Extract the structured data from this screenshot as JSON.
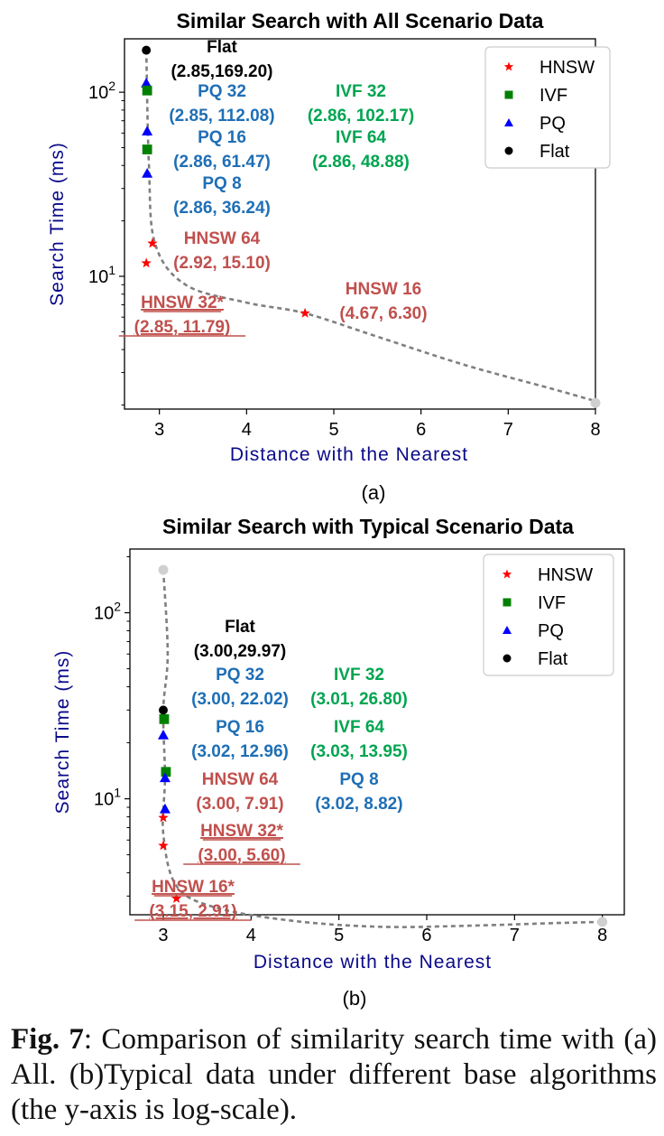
{
  "legend": [
    {
      "label": "HNSW",
      "marker": "star",
      "color": "#ff0000"
    },
    {
      "label": "IVF",
      "marker": "square",
      "color": "#008000"
    },
    {
      "label": "PQ",
      "marker": "triangle",
      "color": "#0000ff"
    },
    {
      "label": "Flat",
      "marker": "circle",
      "color": "#000000"
    }
  ],
  "chart_data": [
    {
      "type": "scatter",
      "panel_label": "(a)",
      "title": "Similar Search with All Scenario Data",
      "xlabel": "Distance with the Nearest",
      "ylabel": "Search Time (ms)",
      "y_scale": "log",
      "xlim": [
        2.6,
        8.0
      ],
      "ylim": [
        1.9,
        195
      ],
      "x_ticks": [
        "3",
        "4",
        "5",
        "6",
        "7",
        "8"
      ],
      "y_ticks": [
        "10^1",
        "10^2"
      ],
      "points": [
        {
          "series": "Flat",
          "x": 2.85,
          "y": 169.2,
          "name": "Flat",
          "coords": "(2.85,169.20)",
          "underline": false
        },
        {
          "series": "PQ",
          "x": 2.85,
          "y": 112.08,
          "name": "PQ 32",
          "coords": "(2.85, 112.08)",
          "underline": false
        },
        {
          "series": "IVF",
          "x": 2.86,
          "y": 102.17,
          "name": "IVF 32",
          "coords": "(2.86, 102.17)",
          "underline": false
        },
        {
          "series": "PQ",
          "x": 2.86,
          "y": 61.47,
          "name": "PQ 16",
          "coords": "(2.86, 61.47)",
          "underline": false
        },
        {
          "series": "IVF",
          "x": 2.86,
          "y": 48.88,
          "name": "IVF 64",
          "coords": "(2.86, 48.88)",
          "underline": false
        },
        {
          "series": "PQ",
          "x": 2.86,
          "y": 36.24,
          "name": "PQ 8",
          "coords": "(2.86, 36.24)",
          "underline": false
        },
        {
          "series": "HNSW",
          "x": 2.92,
          "y": 15.1,
          "name": "HNSW 64",
          "coords": "(2.92, 15.10)",
          "underline": false
        },
        {
          "series": "HNSW",
          "x": 2.85,
          "y": 11.79,
          "name": "HNSW 32*",
          "coords": "(2.85, 11.79)",
          "underline": true
        },
        {
          "series": "HNSW",
          "x": 4.67,
          "y": 6.3,
          "name": "HNSW 16",
          "coords": "(4.67, 6.30)",
          "underline": false
        }
      ],
      "trend_points": [
        [
          2.85,
          169.2
        ],
        [
          2.88,
          40
        ],
        [
          2.95,
          15.1
        ],
        [
          3.3,
          9.0
        ],
        [
          4.0,
          7.2
        ],
        [
          4.67,
          6.3
        ],
        [
          5.5,
          4.7
        ],
        [
          6.5,
          3.3
        ],
        [
          7.5,
          2.45
        ],
        [
          8.0,
          2.1
        ]
      ],
      "trend_end": [
        8.0,
        2.1
      ]
    },
    {
      "type": "scatter",
      "panel_label": "(b)",
      "title": "Similar Search with Typical Scenario Data",
      "xlabel": "Distance with the Nearest",
      "ylabel": "Search Time (ms)",
      "y_scale": "log",
      "xlim": [
        2.62,
        8.25
      ],
      "ylim": [
        2.38,
        220
      ],
      "x_ticks": [
        "3",
        "4",
        "5",
        "6",
        "7",
        "8"
      ],
      "y_ticks": [
        "10^1",
        "10^2"
      ],
      "points": [
        {
          "series": "Flat",
          "x": 3.0,
          "y": 29.97,
          "name": "Flat",
          "coords": "(3.00,29.97)",
          "underline": false
        },
        {
          "series": "IVF",
          "x": 3.01,
          "y": 26.8,
          "name": "IVF 32",
          "coords": "(3.01, 26.80)",
          "underline": false
        },
        {
          "series": "PQ",
          "x": 3.0,
          "y": 22.02,
          "name": "PQ 32",
          "coords": "(3.00, 22.02)",
          "underline": false
        },
        {
          "series": "IVF",
          "x": 3.03,
          "y": 13.95,
          "name": "IVF 64",
          "coords": "(3.03, 13.95)",
          "underline": false
        },
        {
          "series": "PQ",
          "x": 3.02,
          "y": 12.96,
          "name": "PQ 16",
          "coords": "(3.02, 12.96)",
          "underline": false
        },
        {
          "series": "PQ",
          "x": 3.02,
          "y": 8.82,
          "name": "PQ 8",
          "coords": "(3.02, 8.82)",
          "underline": false
        },
        {
          "series": "HNSW",
          "x": 3.0,
          "y": 7.91,
          "name": "HNSW 64",
          "coords": "(3.00, 7.91)",
          "underline": false
        },
        {
          "series": "HNSW",
          "x": 3.0,
          "y": 5.6,
          "name": "HNSW 32*",
          "coords": "(3.00, 5.60)",
          "underline": true
        },
        {
          "series": "HNSW",
          "x": 3.15,
          "y": 2.91,
          "name": "HNSW 16*",
          "coords": "(3.15, 2.91)",
          "underline": true
        }
      ],
      "trend_points": [
        [
          3.0,
          170
        ],
        [
          3.05,
          60
        ],
        [
          3.0,
          30
        ],
        [
          3.02,
          13
        ],
        [
          3.0,
          6.5
        ],
        [
          3.15,
          3.4
        ],
        [
          3.6,
          2.6
        ],
        [
          4.5,
          2.2
        ],
        [
          5.5,
          2.05
        ],
        [
          6.5,
          2.08
        ],
        [
          7.5,
          2.15
        ],
        [
          8.0,
          2.18
        ]
      ],
      "trend_end": [
        8.0,
        2.18
      ],
      "trend_start": [
        3.0,
        170
      ]
    }
  ],
  "caption": {
    "fig_label": "Fig. 7",
    "text": ": Comparison of similarity search time with (a) All. (b)Typical data under different base algorithms (the y-axis is log-scale)."
  }
}
